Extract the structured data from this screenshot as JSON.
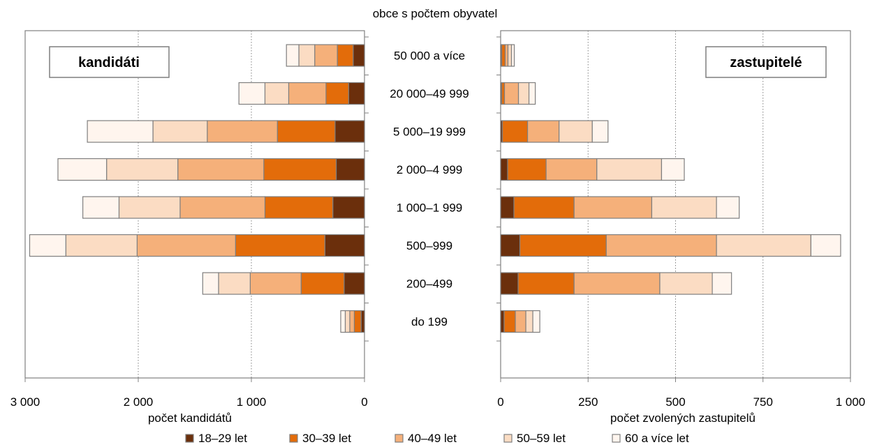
{
  "chart_data": {
    "type": "bar",
    "title": "obce s počtem obyvatel",
    "categories": [
      "50 000 a více",
      "20 000–49 999",
      "5 000–19 999",
      "2 000–4 999",
      "1 000–1 999",
      "500–999",
      "200–499",
      "do 199"
    ],
    "legend": {
      "placement": "bottom",
      "entries": [
        "18–29 let",
        "30–39 let",
        "40–49 let",
        "50–59 let",
        "60 a více let"
      ]
    },
    "colors": [
      "#6b2f0c",
      "#e36c0a",
      "#f5b07a",
      "#fbdcc3",
      "#fff5ee"
    ],
    "border_color": "#7f7f7f",
    "panels": [
      {
        "name": "kandidati",
        "label": "kandidáti",
        "xlabel": "počet kandidátů",
        "xlim": [
          0,
          3000
        ],
        "ticks": [
          3000,
          2000,
          1000,
          0
        ],
        "tick_labels": [
          "3 000",
          "2 000",
          "1 000",
          "0"
        ],
        "direction": "left",
        "grid": "dotted-vertical",
        "series": [
          {
            "name": "18–29 let",
            "values": [
              100,
              140,
              260,
              250,
              280,
              350,
              180,
              30
            ]
          },
          {
            "name": "30–39 let",
            "values": [
              140,
              200,
              510,
              640,
              600,
              790,
              380,
              60
            ]
          },
          {
            "name": "40–49 let",
            "values": [
              200,
              330,
              620,
              760,
              750,
              870,
              450,
              40
            ]
          },
          {
            "name": "50–59 let",
            "values": [
              140,
              210,
              480,
              630,
              540,
              630,
              280,
              40
            ]
          },
          {
            "name": "60 a více let",
            "values": [
              110,
              230,
              580,
              430,
              320,
              320,
              140,
              40
            ]
          }
        ]
      },
      {
        "name": "zastupitele",
        "label": "zastupitelé",
        "xlabel": "počet zvolených zastupitelů",
        "xlim": [
          0,
          1000
        ],
        "ticks": [
          0,
          250,
          500,
          750,
          1000
        ],
        "tick_labels": [
          "0",
          "250",
          "500",
          "750",
          "1 000"
        ],
        "direction": "right",
        "grid": "dotted-vertical",
        "series": [
          {
            "name": "18–29 let",
            "values": [
              3,
              3,
              5,
              20,
              38,
              55,
              50,
              10
            ]
          },
          {
            "name": "30–39 let",
            "values": [
              10,
              8,
              72,
              110,
              172,
              247,
              160,
              32
            ]
          },
          {
            "name": "40–49 let",
            "values": [
              8,
              40,
              90,
              145,
              222,
              315,
              245,
              30
            ]
          },
          {
            "name": "50–59 let",
            "values": [
              10,
              30,
              95,
              185,
              185,
              270,
              150,
              20
            ]
          },
          {
            "name": "60 a více let",
            "values": [
              8,
              18,
              45,
              65,
              65,
              85,
              55,
              20
            ]
          }
        ]
      }
    ]
  }
}
